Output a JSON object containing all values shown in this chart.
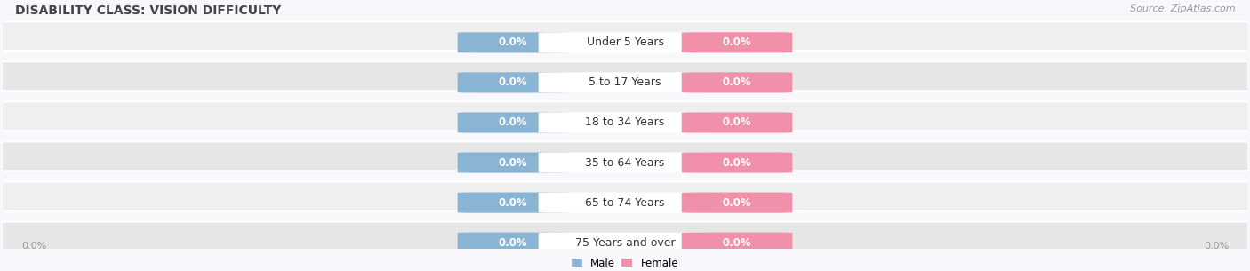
{
  "title": "DISABILITY CLASS: VISION DIFFICULTY",
  "source": "Source: ZipAtlas.com",
  "categories": [
    "Under 5 Years",
    "5 to 17 Years",
    "18 to 34 Years",
    "35 to 64 Years",
    "65 to 74 Years",
    "75 Years and over"
  ],
  "male_values": [
    0.0,
    0.0,
    0.0,
    0.0,
    0.0,
    0.0
  ],
  "female_values": [
    0.0,
    0.0,
    0.0,
    0.0,
    0.0,
    0.0
  ],
  "male_color": "#8ab4d4",
  "female_color": "#f090aa",
  "male_label": "Male",
  "female_label": "Female",
  "row_bg_color_odd": "#efefef",
  "row_bg_color_even": "#e6e6e6",
  "row_bg_color_light": "#f5f5f8",
  "center_label_color": "#333333",
  "axis_label_color": "#999999",
  "title_color": "#444444",
  "source_color": "#999999",
  "bg_color": "#f8f8fc",
  "title_fontsize": 10,
  "source_fontsize": 8,
  "category_fontsize": 9,
  "value_fontsize": 8.5
}
